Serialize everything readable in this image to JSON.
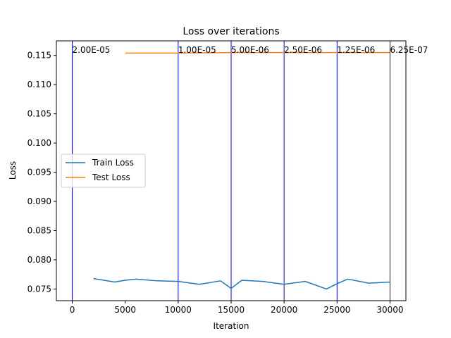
{
  "chart_data": {
    "type": "line",
    "title": "Loss over iterations",
    "xlabel": "Iteration",
    "ylabel": "Loss",
    "xlim": [
      -1500,
      31500
    ],
    "ylim": [
      0.073,
      0.1175
    ],
    "xticks": [
      0,
      5000,
      10000,
      15000,
      20000,
      25000,
      30000
    ],
    "xtick_labels": [
      "0",
      "5000",
      "10000",
      "15000",
      "20000",
      "25000",
      "30000"
    ],
    "yticks": [
      0.075,
      0.08,
      0.085,
      0.09,
      0.095,
      0.1,
      0.105,
      0.11,
      0.115
    ],
    "ytick_labels": [
      "0.075",
      "0.080",
      "0.085",
      "0.090",
      "0.095",
      "0.100",
      "0.105",
      "0.110",
      "0.115"
    ],
    "grid": false,
    "legend": {
      "placement": "center-left"
    },
    "series": [
      {
        "name": "Train Loss",
        "color": "#1f77b4",
        "x": [
          2000,
          4000,
          5000,
          6000,
          8000,
          10000,
          12000,
          14000,
          15000,
          16000,
          18000,
          20000,
          22000,
          24000,
          25000,
          26000,
          28000,
          30000
        ],
        "y": [
          0.0768,
          0.0762,
          0.0765,
          0.0767,
          0.0764,
          0.0763,
          0.0758,
          0.0764,
          0.0751,
          0.0765,
          0.0763,
          0.0758,
          0.0763,
          0.075,
          0.0759,
          0.0767,
          0.076,
          0.0762
        ]
      },
      {
        "name": "Test Loss",
        "color": "#ff7f0e",
        "x": [
          5000,
          10000,
          15000,
          20000,
          25000,
          30000
        ],
        "y": [
          0.1154,
          0.1154,
          0.1155,
          0.1155,
          0.1155,
          0.1155
        ]
      }
    ],
    "vlines": {
      "color": "#0000ff",
      "x": [
        0,
        10000,
        15000,
        20000,
        25000,
        30000
      ],
      "labels": [
        "2.00E-05",
        "1.00E-05",
        "5.00E-06",
        "2.50E-06",
        "1.25E-06",
        "6.25E-07"
      ]
    }
  }
}
